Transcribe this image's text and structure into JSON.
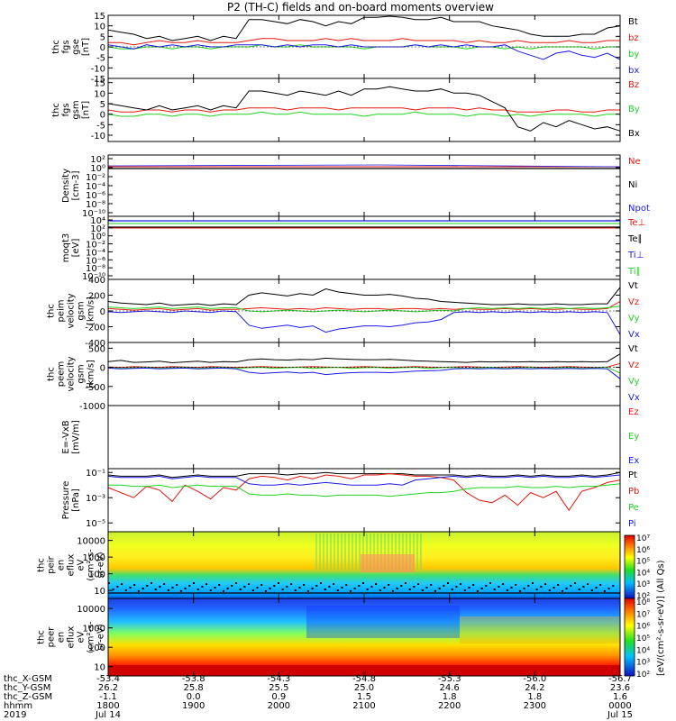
{
  "title": "P2 (TH-C) fields and on-board moments overview",
  "colors": {
    "black": "#000000",
    "red": "#e0190f",
    "green": "#22d322",
    "blue": "#1a1ae6"
  },
  "chart_data": [
    {
      "type": "line",
      "id": "fgs-gse",
      "ylabel": [
        "thc",
        "fgs",
        "gse",
        "[nT]"
      ],
      "yticks": [
        "15",
        "10",
        "5",
        "0",
        "-5",
        "-10",
        "-15"
      ],
      "ylim": [
        -15,
        15
      ],
      "series": [
        {
          "name": "Bt",
          "color": "black",
          "values": [
            8,
            7,
            6,
            4,
            5,
            3,
            4,
            5,
            3,
            5,
            4,
            13,
            13,
            12,
            11,
            13,
            12,
            10,
            12,
            11,
            14,
            14,
            15,
            14,
            13,
            13,
            14,
            12,
            12,
            12,
            10,
            9,
            8,
            6,
            5,
            5,
            5,
            6,
            6,
            9,
            10
          ]
        },
        {
          "name": "bz",
          "color": "red",
          "values": [
            2,
            2,
            1,
            2,
            3,
            2,
            2,
            3,
            2,
            2,
            2,
            3,
            4,
            4,
            3,
            3,
            3,
            4,
            3,
            4,
            3,
            3,
            3,
            4,
            3,
            3,
            3,
            3,
            2,
            3,
            2,
            2,
            3,
            2,
            2,
            2,
            3,
            2,
            2,
            3,
            3
          ]
        },
        {
          "name": "by",
          "color": "green",
          "values": [
            0,
            -1,
            -1,
            0,
            0,
            -1,
            0,
            0,
            -1,
            0,
            0,
            0,
            1,
            0,
            0,
            1,
            0,
            0,
            0,
            0,
            -1,
            0,
            0,
            0,
            1,
            0,
            0,
            0,
            -1,
            0,
            0,
            -1,
            0,
            -1,
            0,
            0,
            0,
            0,
            -1,
            0,
            0
          ]
        },
        {
          "name": "bx",
          "color": "blue",
          "values": [
            1,
            0,
            -1,
            1,
            0,
            1,
            0,
            1,
            0,
            0,
            1,
            1,
            1,
            0,
            1,
            0,
            1,
            1,
            0,
            1,
            0,
            0,
            0,
            0,
            1,
            0,
            1,
            0,
            1,
            0,
            0,
            1,
            -2,
            -4,
            -6,
            -3,
            -2,
            -4,
            -5,
            -3,
            -6
          ]
        }
      ]
    },
    {
      "type": "line",
      "id": "fgs-gsm",
      "ylabel": [
        "thc",
        "fgs",
        "gsm",
        "[nT]"
      ],
      "yticks": [
        "15",
        "10",
        "5",
        "0",
        "-5",
        "-10"
      ],
      "ylim": [
        -13,
        17
      ],
      "series": [
        {
          "name": "Bz",
          "color": "red",
          "values": [
            2,
            1,
            1,
            2,
            2,
            1,
            2,
            2,
            1,
            2,
            2,
            3,
            3,
            3,
            2,
            3,
            3,
            3,
            2,
            3,
            3,
            3,
            3,
            3,
            2,
            3,
            3,
            3,
            2,
            3,
            2,
            2,
            1,
            1,
            1,
            2,
            2,
            1,
            1,
            2,
            2
          ]
        },
        {
          "name": "By",
          "color": "green",
          "values": [
            0,
            -1,
            -1,
            0,
            0,
            -1,
            0,
            0,
            -1,
            0,
            0,
            0,
            1,
            0,
            0,
            1,
            0,
            0,
            0,
            0,
            -1,
            0,
            0,
            0,
            1,
            0,
            0,
            0,
            -1,
            0,
            0,
            -1,
            0,
            -1,
            0,
            0,
            0,
            0,
            -1,
            0,
            0
          ]
        },
        {
          "name": "Bx",
          "color": "black",
          "values": [
            5,
            4,
            3,
            2,
            4,
            2,
            3,
            4,
            2,
            4,
            3,
            11,
            11,
            10,
            9,
            11,
            10,
            9,
            11,
            9,
            12,
            12,
            13,
            12,
            11,
            11,
            12,
            10,
            10,
            9,
            6,
            3,
            -6,
            -8,
            -4,
            -6,
            -3,
            -5,
            -7,
            -6,
            -8
          ]
        }
      ]
    },
    {
      "type": "line",
      "id": "density",
      "ylabel": [
        "Density",
        "[cm-3]"
      ],
      "yticks": [
        "10²",
        "10⁰",
        "10⁻²",
        "10⁻⁴",
        "10⁻⁶",
        "10⁻⁸",
        "10⁻¹⁰"
      ],
      "series": [
        {
          "name": "Ne",
          "color": "red"
        },
        {
          "name": "Ni",
          "color": "black"
        },
        {
          "name": "Npot",
          "color": "blue"
        }
      ]
    },
    {
      "type": "line",
      "id": "temperature",
      "ylabel": [
        "moqt3",
        "[eV]"
      ],
      "yticks": [
        "10⁴",
        "10²",
        "10⁰",
        "10⁻²",
        "10⁻⁴",
        "10⁻⁶",
        "10⁻⁸",
        "10⁻¹⁰"
      ],
      "series": [
        {
          "name": "Te⊥",
          "color": "red"
        },
        {
          "name": "Te∥",
          "color": "black"
        },
        {
          "name": "Ti⊥",
          "color": "blue"
        },
        {
          "name": "Ti∥",
          "color": "green"
        }
      ]
    },
    {
      "type": "line",
      "id": "peim-velocity",
      "ylabel": [
        "thc",
        "peim",
        "velocity",
        "gsm",
        "[km/s]"
      ],
      "yticks": [
        "400",
        "200",
        "0",
        "-200",
        "-400"
      ],
      "ylim": [
        -400,
        400
      ],
      "series": [
        {
          "name": "Vt",
          "color": "black",
          "values": [
            120,
            100,
            90,
            80,
            100,
            70,
            80,
            90,
            70,
            90,
            80,
            200,
            230,
            210,
            190,
            220,
            200,
            280,
            240,
            220,
            200,
            200,
            210,
            190,
            160,
            150,
            120,
            110,
            100,
            90,
            80,
            80,
            90,
            80,
            80,
            90,
            80,
            80,
            90,
            90,
            300
          ]
        },
        {
          "name": "Vz",
          "color": "red",
          "values": [
            30,
            20,
            10,
            20,
            30,
            10,
            20,
            30,
            10,
            20,
            20,
            30,
            40,
            30,
            20,
            30,
            20,
            40,
            30,
            20,
            30,
            30,
            20,
            30,
            30,
            20,
            30,
            20,
            30,
            20,
            20,
            30,
            20,
            30,
            20,
            20,
            30,
            20,
            20,
            30,
            120
          ]
        },
        {
          "name": "Vy",
          "color": "green",
          "values": [
            50,
            40,
            30,
            40,
            50,
            30,
            40,
            50,
            30,
            40,
            40,
            0,
            -10,
            0,
            10,
            0,
            -10,
            0,
            10,
            0,
            -10,
            0,
            10,
            0,
            -10,
            0,
            10,
            0,
            30,
            40,
            30,
            40,
            30,
            40,
            30,
            40,
            30,
            40,
            30,
            40,
            60
          ]
        },
        {
          "name": "Vx",
          "color": "blue",
          "values": [
            -10,
            -20,
            -10,
            0,
            -10,
            -20,
            0,
            -10,
            -20,
            0,
            -10,
            -180,
            -220,
            -200,
            -180,
            -210,
            -190,
            -270,
            -230,
            -210,
            -190,
            -190,
            -200,
            -180,
            -150,
            -140,
            -110,
            -20,
            -10,
            -20,
            -10,
            -20,
            -10,
            -20,
            -10,
            -20,
            -10,
            -20,
            -10,
            -20,
            -300
          ]
        }
      ]
    },
    {
      "type": "line",
      "id": "peem-velocity",
      "ylabel": [
        "thc",
        "peem",
        "velocity",
        "gsm",
        "[km/s]"
      ],
      "yticks": [
        "500",
        "0",
        "-500",
        "-1000"
      ],
      "ylim": [
        -1000,
        650
      ],
      "series": [
        {
          "name": "Vt",
          "color": "black",
          "values": [
            150,
            180,
            130,
            140,
            160,
            120,
            140,
            160,
            130,
            150,
            140,
            200,
            220,
            200,
            190,
            210,
            200,
            240,
            220,
            210,
            200,
            200,
            210,
            190,
            170,
            160,
            150,
            140,
            130,
            150,
            140,
            150,
            140,
            150,
            140,
            150,
            140,
            150,
            140,
            150,
            350
          ]
        },
        {
          "name": "Vz",
          "color": "red",
          "values": [
            10,
            0,
            20,
            10,
            0,
            20,
            10,
            0,
            20,
            10,
            0,
            10,
            20,
            10,
            0,
            10,
            20,
            10,
            0,
            10,
            20,
            10,
            0,
            10,
            20,
            10,
            0,
            10,
            20,
            10,
            0,
            10,
            20,
            10,
            0,
            10,
            20,
            10,
            0,
            10,
            100
          ]
        },
        {
          "name": "Vy",
          "color": "green",
          "values": [
            0,
            -30,
            -10,
            0,
            -30,
            -10,
            0,
            -30,
            -10,
            0,
            -30,
            -10,
            0,
            -30,
            -10,
            0,
            -30,
            -10,
            0,
            -30,
            -10,
            0,
            -30,
            -10,
            0,
            -30,
            -10,
            0,
            -30,
            -10,
            0,
            -30,
            -10,
            0,
            -30,
            -10,
            0,
            -30,
            -10,
            0,
            -150
          ]
        },
        {
          "name": "Vx",
          "color": "blue",
          "values": [
            -20,
            -40,
            -30,
            -20,
            -40,
            -30,
            -20,
            -40,
            -30,
            -20,
            -40,
            -130,
            -160,
            -140,
            -120,
            -150,
            -130,
            -190,
            -160,
            -140,
            -130,
            -130,
            -140,
            -120,
            -100,
            -90,
            -80,
            -40,
            -30,
            -40,
            -30,
            -40,
            -30,
            -40,
            -30,
            -40,
            -30,
            -40,
            -30,
            -40,
            -300
          ]
        }
      ]
    },
    {
      "type": "line",
      "id": "e-field",
      "ylabel": [
        "E=-VxB",
        "[mV/m]"
      ],
      "series": [
        {
          "name": "Ez",
          "color": "red"
        },
        {
          "name": "Ey",
          "color": "green"
        },
        {
          "name": "Ex",
          "color": "blue"
        }
      ]
    },
    {
      "type": "line",
      "id": "pressure",
      "ylabel": [
        "Pressure",
        "[nPa]"
      ],
      "yticks": [
        "10⁻¹",
        "10⁻³",
        "10⁻⁵"
      ],
      "log": true,
      "ylim_log10": [
        -5.7,
        -0.7
      ],
      "series": [
        {
          "name": "Pt",
          "color": "black",
          "values": [
            -1.2,
            -1.3,
            -1.3,
            -1.3,
            -1.2,
            -1.4,
            -1.3,
            -1.2,
            -1.3,
            -1.3,
            -1.3,
            -1.1,
            -1.1,
            -1.1,
            -1.2,
            -1.1,
            -1.1,
            -1.0,
            -1.1,
            -1.1,
            -1.1,
            -1.1,
            -1.1,
            -1.1,
            -1.2,
            -1.2,
            -1.2,
            -1.2,
            -1.3,
            -1.2,
            -1.3,
            -1.3,
            -1.2,
            -1.3,
            -1.2,
            -1.3,
            -1.3,
            -1.2,
            -1.3,
            -1.2,
            -1.0
          ]
        },
        {
          "name": "Pb",
          "color": "red",
          "values": [
            -2.2,
            -2.6,
            -3.0,
            -2.1,
            -2.4,
            -3.3,
            -2.0,
            -2.5,
            -3.1,
            -2.2,
            -2.4,
            -1.5,
            -1.3,
            -1.4,
            -1.6,
            -1.3,
            -1.5,
            -1.2,
            -1.3,
            -1.5,
            -1.2,
            -1.2,
            -1.1,
            -1.2,
            -1.3,
            -1.3,
            -1.4,
            -1.6,
            -2.6,
            -3.2,
            -3.4,
            -2.8,
            -3.6,
            -2.6,
            -3.0,
            -2.5,
            -4.0,
            -2.5,
            -2.2,
            -1.8,
            -1.6
          ]
        },
        {
          "name": "Pe",
          "color": "green",
          "values": [
            -2.0,
            -2.0,
            -2.1,
            -2.1,
            -2.0,
            -2.2,
            -2.1,
            -2.0,
            -2.1,
            -2.1,
            -2.1,
            -2.7,
            -2.8,
            -2.8,
            -2.7,
            -2.8,
            -2.8,
            -2.9,
            -2.8,
            -2.8,
            -2.8,
            -2.8,
            -2.9,
            -2.8,
            -2.7,
            -2.6,
            -2.6,
            -2.5,
            -2.3,
            -2.2,
            -2.2,
            -2.2,
            -2.1,
            -2.2,
            -2.2,
            -2.1,
            -2.2,
            -2.1,
            -2.1,
            -2.0,
            -1.9
          ]
        },
        {
          "name": "Pi",
          "color": "blue",
          "values": [
            -1.3,
            -1.4,
            -1.4,
            -1.4,
            -1.3,
            -1.5,
            -1.4,
            -1.3,
            -1.4,
            -1.4,
            -1.4,
            -1.9,
            -2.0,
            -2.0,
            -1.9,
            -2.0,
            -1.9,
            -1.8,
            -1.9,
            -2.0,
            -2.0,
            -2.0,
            -1.9,
            -2.0,
            -1.6,
            -1.5,
            -1.4,
            -1.3,
            -1.4,
            -1.3,
            -1.4,
            -1.4,
            -1.3,
            -1.4,
            -1.3,
            -1.4,
            -1.4,
            -1.3,
            -1.4,
            -1.3,
            -1.2
          ]
        }
      ]
    },
    {
      "type": "heatmap",
      "id": "peir-eflux",
      "ylabel": [
        "thc",
        "peir",
        "en",
        "eflux",
        "eV",
        "(cm²-s-",
        "sr-eV)"
      ],
      "yticks": [
        "10000",
        "1000",
        "100",
        "10"
      ]
    },
    {
      "type": "heatmap",
      "id": "peer-eflux",
      "ylabel": [
        "thc",
        "peer",
        "en",
        "eflux",
        "eV",
        "(cm²-s-",
        "sr-eV)"
      ],
      "yticks": [
        "10000",
        "1000",
        "100",
        "10"
      ]
    }
  ],
  "colorbar": {
    "label": "[eV/(cm²-s-sr-eV)] (All Qs)",
    "upper_ticks": [
      "10⁷",
      "10⁶",
      "10⁵",
      "10⁴",
      "10³",
      "10²"
    ],
    "lower_ticks": [
      "10⁸",
      "10⁷",
      "10⁶",
      "10⁵",
      "10⁴",
      "10³",
      "10²"
    ]
  },
  "xaxis": {
    "row_labels": [
      "thc_X-GSM",
      "thc_Y-GSM",
      "thc_Z-GSM",
      "hhmm",
      "2019"
    ],
    "ticks": [
      {
        "x": "-53.4",
        "y": "26.2",
        "z": "-1.1",
        "t": "1800",
        "d": "Jul 14"
      },
      {
        "x": "-53.8",
        "y": "25.8",
        "z": "0.0",
        "t": "1900",
        "d": ""
      },
      {
        "x": "-54.3",
        "y": "25.5",
        "z": "0.9",
        "t": "2000",
        "d": ""
      },
      {
        "x": "-54.8",
        "y": "25.0",
        "z": "1.5",
        "t": "2100",
        "d": ""
      },
      {
        "x": "-55.3",
        "y": "24.6",
        "z": "1.8",
        "t": "2200",
        "d": ""
      },
      {
        "x": "-56.0",
        "y": "24.2",
        "z": "1.8",
        "t": "2300",
        "d": ""
      },
      {
        "x": "-56.7",
        "y": "23.6",
        "z": "1.6",
        "t": "0000",
        "d": "Jul 15"
      }
    ]
  }
}
